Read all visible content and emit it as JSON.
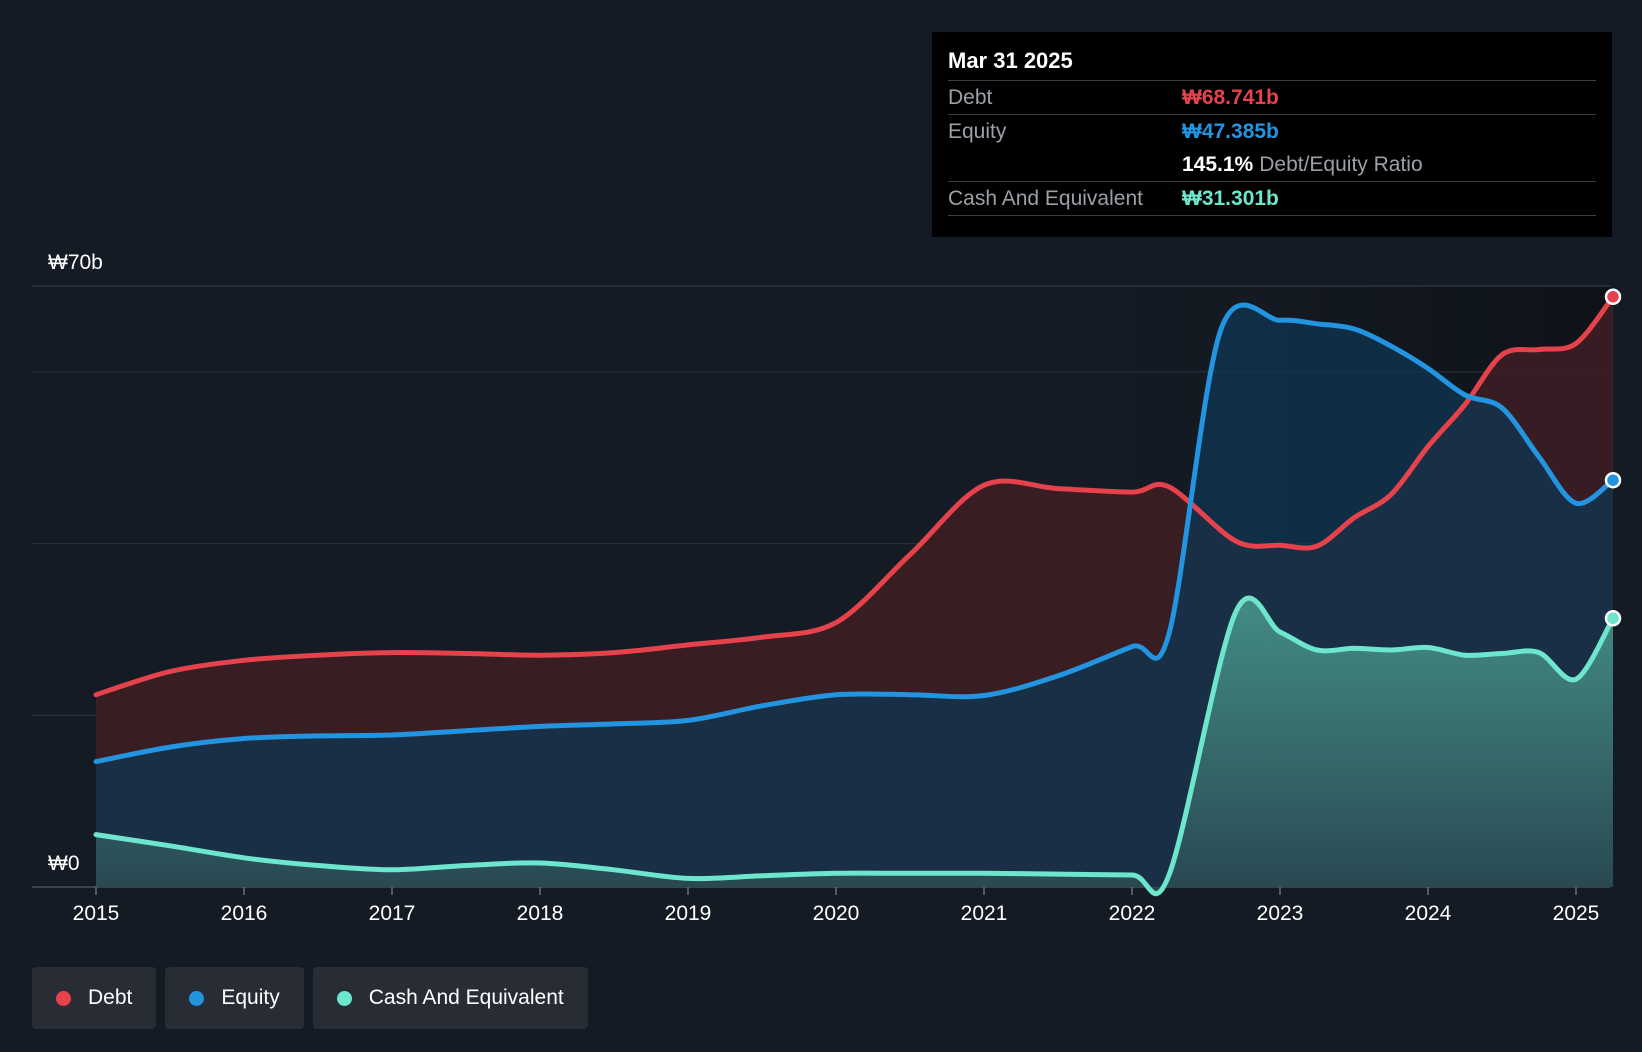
{
  "chart_data": {
    "type": "area",
    "y_axis": {
      "top_label": "₩70b",
      "bottom_label": "₩0",
      "ylim": [
        0,
        70
      ]
    },
    "x_ticks": [
      "2015",
      "2016",
      "2017",
      "2018",
      "2019",
      "2020",
      "2021",
      "2022",
      "2023",
      "2024",
      "2025"
    ],
    "grid": true,
    "series": [
      {
        "name": "Debt",
        "color": "#e5424b",
        "fill": "#3a1e24",
        "points": [
          [
            2015.0,
            22.4
          ],
          [
            2015.5,
            25.1
          ],
          [
            2016.0,
            26.4
          ],
          [
            2016.5,
            27.0
          ],
          [
            2017.0,
            27.3
          ],
          [
            2017.5,
            27.2
          ],
          [
            2018.0,
            27.0
          ],
          [
            2018.5,
            27.3
          ],
          [
            2019.0,
            28.2
          ],
          [
            2019.5,
            29.1
          ],
          [
            2020.0,
            30.8
          ],
          [
            2020.5,
            38.7
          ],
          [
            2021.0,
            46.8
          ],
          [
            2021.5,
            46.4
          ],
          [
            2022.0,
            46.0
          ],
          [
            2022.25,
            46.6
          ],
          [
            2022.7,
            40.3
          ],
          [
            2023.0,
            39.8
          ],
          [
            2023.25,
            39.7
          ],
          [
            2023.5,
            43.0
          ],
          [
            2023.75,
            45.7
          ],
          [
            2024.0,
            51.3
          ],
          [
            2024.25,
            56.2
          ],
          [
            2024.5,
            62.0
          ],
          [
            2024.75,
            62.6
          ],
          [
            2025.0,
            63.3
          ],
          [
            2025.25,
            68.741
          ]
        ]
      },
      {
        "name": "Equity",
        "color": "#2394df",
        "fill": "#0f3552",
        "points": [
          [
            2015.0,
            14.6
          ],
          [
            2015.5,
            16.3
          ],
          [
            2016.0,
            17.3
          ],
          [
            2016.5,
            17.6
          ],
          [
            2017.0,
            17.7
          ],
          [
            2017.5,
            18.2
          ],
          [
            2018.0,
            18.7
          ],
          [
            2018.5,
            19.0
          ],
          [
            2019.0,
            19.4
          ],
          [
            2019.5,
            21.1
          ],
          [
            2020.0,
            22.4
          ],
          [
            2020.5,
            22.4
          ],
          [
            2021.0,
            22.3
          ],
          [
            2021.5,
            24.6
          ],
          [
            2022.0,
            28.0
          ],
          [
            2022.25,
            29.5
          ],
          [
            2022.6,
            64.9
          ],
          [
            2023.0,
            66.0
          ],
          [
            2023.25,
            65.6
          ],
          [
            2023.5,
            65.0
          ],
          [
            2023.75,
            63.0
          ],
          [
            2024.0,
            60.4
          ],
          [
            2024.25,
            57.3
          ],
          [
            2024.5,
            55.8
          ],
          [
            2024.75,
            50.1
          ],
          [
            2025.0,
            44.7
          ],
          [
            2025.25,
            47.385
          ]
        ]
      },
      {
        "name": "Cash And Equivalent",
        "color": "#6ee5cd",
        "fill": "#2c5a5a",
        "points": [
          [
            2015.0,
            6.1
          ],
          [
            2015.5,
            4.8
          ],
          [
            2016.0,
            3.4
          ],
          [
            2016.5,
            2.5
          ],
          [
            2017.0,
            2.0
          ],
          [
            2017.5,
            2.5
          ],
          [
            2018.0,
            2.8
          ],
          [
            2018.5,
            2.0
          ],
          [
            2019.0,
            1.0
          ],
          [
            2019.5,
            1.3
          ],
          [
            2020.0,
            1.6
          ],
          [
            2020.5,
            1.6
          ],
          [
            2021.0,
            1.6
          ],
          [
            2021.5,
            1.5
          ],
          [
            2022.0,
            1.4
          ],
          [
            2022.25,
            1.4
          ],
          [
            2022.7,
            32.0
          ],
          [
            2023.0,
            29.7
          ],
          [
            2023.25,
            27.6
          ],
          [
            2023.5,
            27.8
          ],
          [
            2023.75,
            27.6
          ],
          [
            2024.0,
            27.9
          ],
          [
            2024.25,
            27.0
          ],
          [
            2024.5,
            27.2
          ],
          [
            2024.75,
            27.3
          ],
          [
            2025.0,
            24.2
          ],
          [
            2025.25,
            31.301
          ]
        ]
      }
    ],
    "tooltip": {
      "date": "Mar 31 2025",
      "debt_label": "Debt",
      "debt_value": "₩68.741b",
      "equity_label": "Equity",
      "equity_value": "₩47.385b",
      "ratio_value": "145.1%",
      "ratio_label": "Debt/Equity Ratio",
      "cash_label": "Cash And Equivalent",
      "cash_value": "₩31.301b"
    }
  },
  "legend": {
    "debt": "Debt",
    "equity": "Equity",
    "cash": "Cash And Equivalent"
  }
}
